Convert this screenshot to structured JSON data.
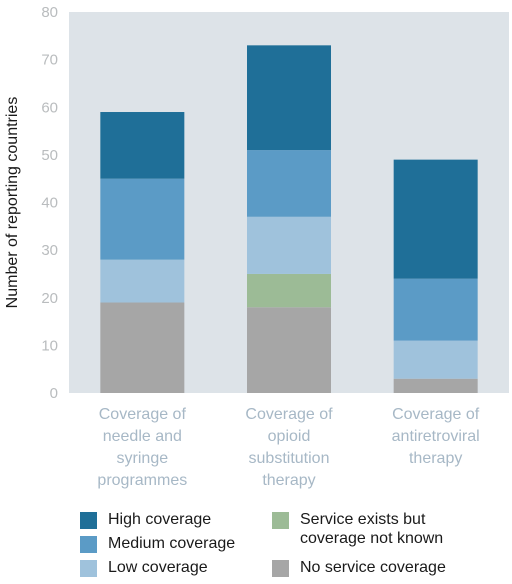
{
  "chart_data": {
    "type": "bar",
    "stacked": true,
    "ylabel": "Number of reporting countries",
    "xlabel": "",
    "ylim": [
      0,
      80
    ],
    "yticks": [
      "0",
      "10",
      "20",
      "30",
      "40",
      "50",
      "60",
      "70",
      "80"
    ],
    "grid": false,
    "background": "#dde3e8",
    "categories": [
      [
        "Coverage of",
        "needle and",
        "syringe",
        "programmes"
      ],
      [
        "Coverage of",
        "opioid",
        "substitution",
        "therapy"
      ],
      [
        "Coverage of",
        "antiretroviral",
        "therapy"
      ]
    ],
    "series": [
      {
        "name": "No service coverage",
        "color": "#a6a6a6",
        "values": [
          19,
          18,
          3
        ]
      },
      {
        "name": "Service exists but coverage not known",
        "color": "#9cbb96",
        "values": [
          0,
          7,
          0
        ]
      },
      {
        "name": "Low coverage",
        "color": "#9fc2dc",
        "values": [
          9,
          12,
          8
        ]
      },
      {
        "name": "Medium coverage",
        "color": "#5b9bc6",
        "values": [
          17,
          14,
          13
        ]
      },
      {
        "name": "High coverage",
        "color": "#1f6f98",
        "values": [
          14,
          22,
          25
        ]
      }
    ],
    "legend": {
      "placement": "bottom",
      "items": [
        {
          "lines": [
            "High coverage"
          ],
          "color": "#1f6f98"
        },
        {
          "lines": [
            "Medium coverage"
          ],
          "color": "#5b9bc6"
        },
        {
          "lines": [
            "Low coverage"
          ],
          "color": "#9fc2dc"
        },
        {
          "lines": [
            "Service exists but",
            "coverage not known"
          ],
          "color": "#9cbb96"
        },
        {
          "lines": [
            "No service coverage"
          ],
          "color": "#a6a6a6"
        }
      ]
    }
  }
}
